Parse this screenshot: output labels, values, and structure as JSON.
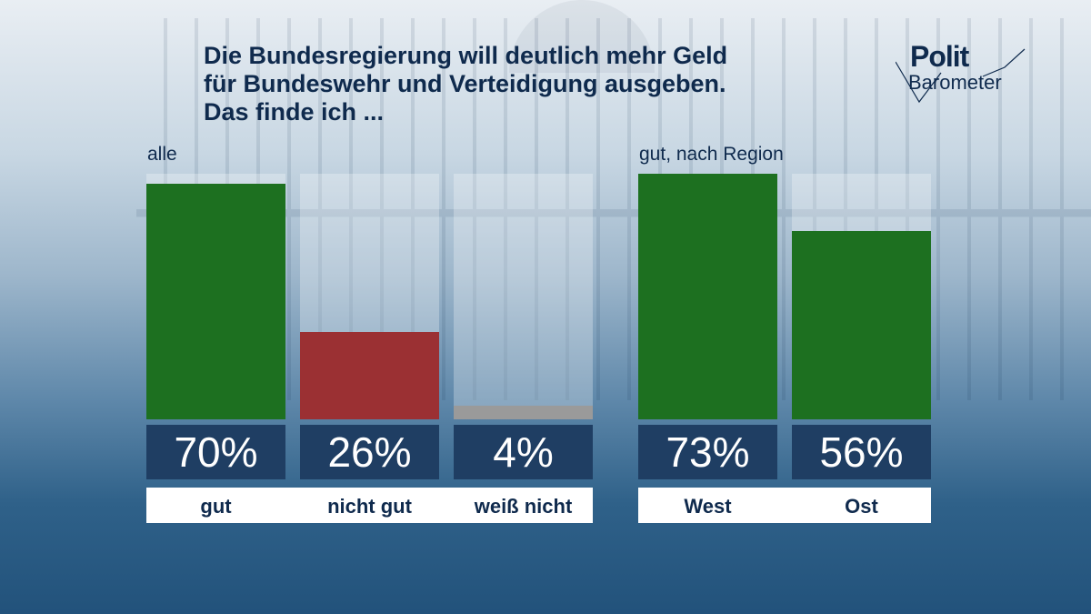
{
  "title_lines": [
    "Die Bundesregierung will deutlich mehr Geld",
    "für Bundeswehr und Verteidigung ausgeben.",
    "Das finde ich ..."
  ],
  "logo": {
    "polit": "Polit",
    "barometer": "Barometer"
  },
  "colors": {
    "green": "#1d7020",
    "red": "#9b3033",
    "gray": "#9a9a9a",
    "value_box": "#1f3e63",
    "title": "#0f2a4d"
  },
  "chart_data": [
    {
      "type": "bar",
      "subtitle": "alle",
      "categories": [
        "gut",
        "nicht gut",
        "weiß nicht"
      ],
      "values": [
        70,
        26,
        4
      ],
      "value_labels": [
        "70%",
        "26%",
        "4%"
      ],
      "colors": [
        "#1d7020",
        "#9b3033",
        "#9a9a9a"
      ],
      "ylim": [
        0,
        73
      ]
    },
    {
      "type": "bar",
      "subtitle": "gut, nach Region",
      "categories": [
        "West",
        "Ost"
      ],
      "values": [
        73,
        56
      ],
      "value_labels": [
        "73%",
        "56%"
      ],
      "colors": [
        "#1d7020",
        "#1d7020"
      ],
      "ylim": [
        0,
        73
      ]
    }
  ]
}
